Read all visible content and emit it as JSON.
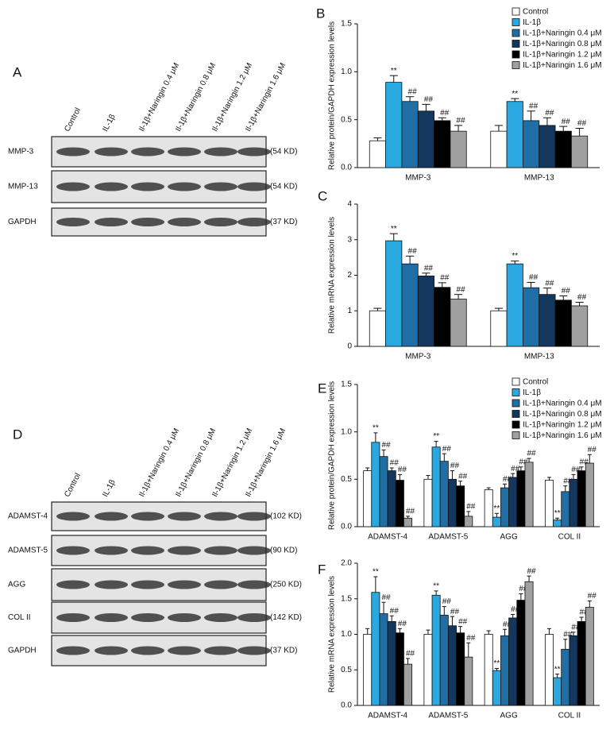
{
  "blots": [
    {
      "panel": "A",
      "lanes": [
        "Control",
        "IL-1β",
        "Il-1β+Naringin 0.4 μM",
        "Il-1β+Naringin 0.8 μM",
        "Il-1β+Naringin 1.2 μM",
        "Il-1β+Naringin 1.6 μM"
      ],
      "rows": [
        {
          "name": "MMP-3",
          "size": "(54 KD)"
        },
        {
          "name": "MMP-13",
          "size": "(54 KD)"
        },
        {
          "name": "GAPDH",
          "size": "(37 KD)"
        }
      ]
    },
    {
      "panel": "D",
      "lanes": [
        "Control",
        "IL-1β",
        "Il-1β+Naringin 0.4 μM",
        "Il-1β+Naringin 0.8 μM",
        "Il-1β+Naringin 1.2 μM",
        "Il-1β+Naringin 1.6 μM"
      ],
      "rows": [
        {
          "name": "ADAMST-4",
          "size": "(102 KD)"
        },
        {
          "name": "ADAMST-5",
          "size": "(90 KD)"
        },
        {
          "name": "AGG",
          "size": "(250 KD)"
        },
        {
          "name": "COL II",
          "size": "(142 KD)"
        },
        {
          "name": "GAPDH",
          "size": "(37 KD)"
        }
      ]
    }
  ],
  "chart_data": [
    {
      "type": "bar",
      "panel": "B",
      "y_label": "Relative protein/GAPDH expression levels",
      "legend": "top-right",
      "categories": [
        "MMP-3",
        "MMP-13"
      ],
      "ylim": [
        0,
        1.5
      ],
      "yticks": [
        {
          "value": 0,
          "label": "0.0"
        },
        0.5,
        {
          "value": 1,
          "label": "1.0"
        },
        1.5
      ],
      "series": [
        {
          "name": "Control",
          "color": "#ffffff",
          "values": [
            0.28,
            0.38
          ],
          "errors": [
            0.03,
            0.06
          ]
        },
        {
          "name": "IL-1β",
          "color": "#29a9e0",
          "values": [
            0.89,
            0.69
          ],
          "errors": [
            0.07,
            0.03
          ],
          "annotations": [
            "**",
            "**"
          ]
        },
        {
          "name": "IL-1β+Naringin 0.4 μM",
          "color": "#1f6fa6",
          "values": [
            0.69,
            0.49
          ],
          "errors": [
            0.05,
            0.1
          ],
          "annotations": [
            "##",
            "##"
          ]
        },
        {
          "name": "IL-1β+Naringin 0.8 μM",
          "color": "#13375f",
          "values": [
            0.59,
            0.44
          ],
          "errors": [
            0.07,
            0.08
          ],
          "annotations": [
            "##",
            "##"
          ]
        },
        {
          "name": "IL-1β+Naringin 1.2 μM",
          "color": "#000000",
          "values": [
            0.49,
            0.38
          ],
          "errors": [
            0.03,
            0.05
          ],
          "annotations": [
            "##",
            "##"
          ]
        },
        {
          "name": "IL-1β+Naringin 1.6 μM",
          "color": "#a0a0a0",
          "values": [
            0.38,
            0.33
          ],
          "errors": [
            0.06,
            0.08
          ],
          "annotations": [
            "##",
            "##"
          ]
        }
      ]
    },
    {
      "type": "bar",
      "panel": "C",
      "y_label": "Relative mRNA expression levels",
      "categories": [
        "MMP-3",
        "MMP-13"
      ],
      "ylim": [
        0,
        4
      ],
      "yticks": [
        0,
        1,
        2,
        3,
        4
      ],
      "series": [
        {
          "color": "#ffffff",
          "values": [
            1.0,
            1.0
          ],
          "errors": [
            0.07,
            0.07
          ]
        },
        {
          "color": "#29a9e0",
          "values": [
            2.97,
            2.32
          ],
          "errors": [
            0.2,
            0.08
          ],
          "annotations": [
            "**",
            "**"
          ]
        },
        {
          "color": "#1f6fa6",
          "values": [
            2.32,
            1.65
          ],
          "errors": [
            0.22,
            0.15
          ],
          "annotations": [
            "##",
            "##"
          ]
        },
        {
          "color": "#13375f",
          "values": [
            1.98,
            1.46
          ],
          "errors": [
            0.08,
            0.18
          ],
          "annotations": [
            "##",
            "##"
          ]
        },
        {
          "color": "#000000",
          "values": [
            1.66,
            1.3
          ],
          "errors": [
            0.13,
            0.12
          ],
          "annotations": [
            "##",
            "##"
          ]
        },
        {
          "color": "#a0a0a0",
          "values": [
            1.33,
            1.14
          ],
          "errors": [
            0.13,
            0.1
          ],
          "annotations": [
            "##",
            "##"
          ]
        }
      ]
    },
    {
      "type": "bar",
      "panel": "E",
      "y_label": "Relative protein/GAPDH expression levels",
      "legend": "top-right",
      "categories": [
        "ADAMST-4",
        "ADAMST-5",
        "AGG",
        "COL II"
      ],
      "ylim": [
        0,
        1.5
      ],
      "yticks": [
        {
          "value": 0,
          "label": "0.0"
        },
        0.5,
        {
          "value": 1,
          "label": "1.0"
        },
        1.5
      ],
      "series": [
        {
          "name": "Control",
          "color": "#ffffff",
          "values": [
            0.59,
            0.5,
            0.39,
            0.49
          ],
          "errors": [
            0.03,
            0.04,
            0.02,
            0.03
          ]
        },
        {
          "name": "IL-1β",
          "color": "#29a9e0",
          "values": [
            0.89,
            0.84,
            0.1,
            0.07
          ],
          "errors": [
            0.1,
            0.06,
            0.04,
            0.02
          ],
          "annotations": [
            "**",
            "**",
            "**",
            "**"
          ]
        },
        {
          "name": "IL-1β+Naringin 0.4 μM",
          "color": "#1f6fa6",
          "values": [
            0.74,
            0.69,
            0.41,
            0.37
          ],
          "errors": [
            0.07,
            0.08,
            0.04,
            0.06
          ],
          "annotations": [
            "##",
            "##",
            "##",
            "##"
          ]
        },
        {
          "name": "IL-1β+Naringin 0.8 μM",
          "color": "#13375f",
          "values": [
            0.59,
            0.5,
            0.52,
            0.5
          ],
          "errors": [
            0.03,
            0.09,
            0.04,
            0.05
          ],
          "annotations": [
            "##",
            "##",
            "##",
            "##"
          ]
        },
        {
          "name": "IL-1β+Naringin 1.2 μM",
          "color": "#000000",
          "values": [
            0.49,
            0.43,
            0.59,
            0.59
          ],
          "errors": [
            0.06,
            0.05,
            0.04,
            0.04
          ],
          "annotations": [
            "##",
            "##",
            "##",
            "##"
          ]
        },
        {
          "name": "IL-1β+Naringin 1.6 μM",
          "color": "#a0a0a0",
          "values": [
            0.09,
            0.11,
            0.68,
            0.67
          ],
          "errors": [
            0.02,
            0.05,
            0.04,
            0.09
          ],
          "annotations": [
            "##",
            "##",
            "##",
            "##"
          ]
        }
      ]
    },
    {
      "type": "bar",
      "panel": "F",
      "y_label": "Relative mRNA expression levels",
      "categories": [
        "ADAMST-4",
        "ADAMST-5",
        "AGG",
        "COL II"
      ],
      "ylim": [
        0,
        2
      ],
      "yticks": [
        {
          "value": 0,
          "label": "0.0"
        },
        0.5,
        {
          "value": 1,
          "label": "1.0"
        },
        1.5,
        {
          "value": 2,
          "label": "2.0"
        }
      ],
      "series": [
        {
          "color": "#ffffff",
          "values": [
            1.0,
            1.0,
            1.0,
            1.0
          ],
          "errors": [
            0.08,
            0.06,
            0.05,
            0.08
          ]
        },
        {
          "color": "#29a9e0",
          "values": [
            1.59,
            1.55,
            0.49,
            0.39
          ],
          "errors": [
            0.22,
            0.06,
            0.03,
            0.05
          ],
          "annotations": [
            "**",
            "**",
            "**",
            "**"
          ]
        },
        {
          "color": "#1f6fa6",
          "values": [
            1.29,
            1.27,
            0.98,
            0.79
          ],
          "errors": [
            0.16,
            0.12,
            0.09,
            0.14
          ],
          "annotations": [
            "##",
            "##",
            "##",
            "##"
          ]
        },
        {
          "color": "#13375f",
          "values": [
            1.18,
            1.12,
            1.23,
            0.98
          ],
          "errors": [
            0.08,
            0.13,
            0.05,
            0.05
          ],
          "annotations": [
            "##",
            "##",
            "##",
            "##"
          ]
        },
        {
          "color": "#000000",
          "values": [
            1.02,
            1.02,
            1.48,
            1.18
          ],
          "errors": [
            0.06,
            0.09,
            0.09,
            0.06
          ],
          "annotations": [
            "##",
            "##",
            "##",
            "##"
          ]
        },
        {
          "color": "#a0a0a0",
          "values": [
            0.58,
            0.68,
            1.74,
            1.38
          ],
          "errors": [
            0.08,
            0.2,
            0.08,
            0.09
          ],
          "annotations": [
            "##",
            "##",
            "##",
            "##"
          ]
        }
      ]
    }
  ]
}
